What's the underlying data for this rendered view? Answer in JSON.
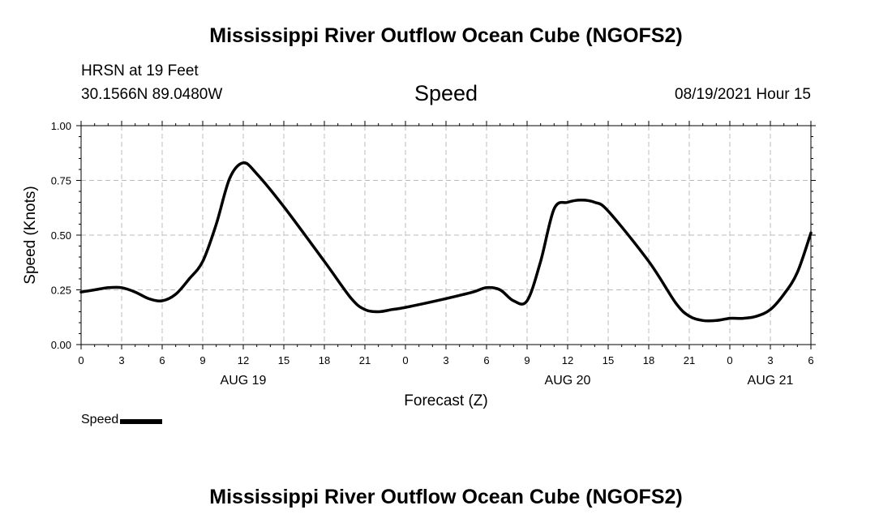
{
  "header": {
    "title": "Mississippi River Outflow Ocean Cube (NGOFS2)",
    "station": "HRSN at 19 Feet",
    "coordinates": "30.1566N  89.0480W",
    "parameter": "Speed",
    "datetime": "08/19/2021 Hour 15"
  },
  "footer": {
    "title": "Mississippi River Outflow Ocean Cube (NGOFS2)"
  },
  "chart_data": {
    "type": "line",
    "title": "Speed",
    "xlabel": "Forecast (Z)",
    "ylabel": "Speed (Knots)",
    "xlim": [
      "08/19 00Z",
      "08/21 06Z"
    ],
    "ylim": [
      0,
      1.0
    ],
    "grid": true,
    "legend": "bottom-left",
    "y_ticks": [
      "0.00",
      "0.25",
      "0.50",
      "0.75",
      "1.00"
    ],
    "x_tick_labels": [
      "0",
      "3",
      "6",
      "9",
      "12",
      "15",
      "18",
      "21",
      "0",
      "3",
      "6",
      "9",
      "12",
      "15",
      "18",
      "21",
      "0",
      "3",
      "6"
    ],
    "date_labels": [
      {
        "label": "AUG 19",
        "at": "08/19 12Z"
      },
      {
        "label": "AUG 20",
        "at": "08/20 12Z"
      },
      {
        "label": "AUG 21",
        "at": "08/21 03Z"
      }
    ],
    "series": [
      {
        "name": "Speed",
        "color": "#000000",
        "x": [
          "08/19 00Z",
          "08/19 01Z",
          "08/19 02Z",
          "08/19 03Z",
          "08/19 04Z",
          "08/19 05Z",
          "08/19 06Z",
          "08/19 07Z",
          "08/19 08Z",
          "08/19 09Z",
          "08/19 10Z",
          "08/19 11Z",
          "08/19 12Z",
          "08/19 13Z",
          "08/19 15Z",
          "08/19 18Z",
          "08/19 20Z",
          "08/19 21Z",
          "08/19 22Z",
          "08/19 23Z",
          "08/20 00Z",
          "08/20 03Z",
          "08/20 05Z",
          "08/20 06Z",
          "08/20 07Z",
          "08/20 08Z",
          "08/20 09Z",
          "08/20 10Z",
          "08/20 11Z",
          "08/20 12Z",
          "08/20 13Z",
          "08/20 14Z",
          "08/20 15Z",
          "08/20 18Z",
          "08/20 20Z",
          "08/20 21Z",
          "08/20 22Z",
          "08/20 23Z",
          "08/21 00Z",
          "08/21 01Z",
          "08/21 02Z",
          "08/21 03Z",
          "08/21 04Z",
          "08/21 05Z",
          "08/21 06Z"
        ],
        "values": [
          0.24,
          0.25,
          0.26,
          0.26,
          0.24,
          0.21,
          0.2,
          0.23,
          0.3,
          0.38,
          0.55,
          0.76,
          0.83,
          0.78,
          0.63,
          0.38,
          0.21,
          0.16,
          0.15,
          0.16,
          0.17,
          0.21,
          0.24,
          0.26,
          0.25,
          0.2,
          0.2,
          0.38,
          0.62,
          0.65,
          0.66,
          0.65,
          0.61,
          0.38,
          0.19,
          0.13,
          0.11,
          0.11,
          0.12,
          0.12,
          0.13,
          0.16,
          0.23,
          0.33,
          0.51
        ]
      }
    ]
  }
}
